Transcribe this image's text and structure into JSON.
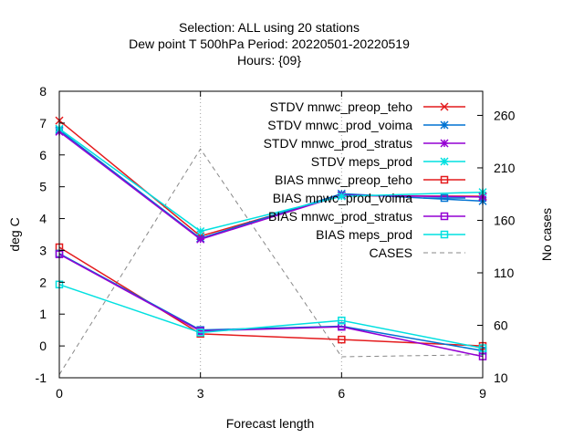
{
  "chart_data": {
    "type": "line",
    "title_lines": [
      "Selection: ALL using    20 stations",
      "Dew point T 500hPa   Period: 20220501-20220519",
      "Hours: {09}"
    ],
    "xlabel": "Forecast length",
    "ylabel": "deg C",
    "y2label": "No cases",
    "x": [
      0,
      3,
      6,
      9
    ],
    "xlim": [
      0,
      9
    ],
    "ylim": [
      -1,
      8
    ],
    "y2lim": [
      10,
      283
    ],
    "xticks": [
      "0",
      "3",
      "6",
      "9"
    ],
    "yticks": [
      "-1",
      "0",
      "1",
      "2",
      "3",
      "4",
      "5",
      "6",
      "7",
      "8"
    ],
    "y2ticks": [
      "10",
      "60",
      "110",
      "160",
      "210",
      "260"
    ],
    "grid": true,
    "legend_position": "top-right",
    "series": [
      {
        "name": "STDV mnwc_preop_teho",
        "values": [
          7.08,
          3.45,
          4.72,
          4.7
        ],
        "color": "#e41a1c",
        "marker": "x",
        "axis": "y"
      },
      {
        "name": "STDV mnwc_prod_voima",
        "values": [
          6.78,
          3.38,
          4.78,
          4.55
        ],
        "color": "#0072d2",
        "marker": "star",
        "axis": "y"
      },
      {
        "name": "STDV mnwc_prod_stratus",
        "values": [
          6.73,
          3.35,
          4.73,
          4.68
        ],
        "color": "#9400d3",
        "marker": "star",
        "axis": "y"
      },
      {
        "name": "STDV meps_prod",
        "values": [
          6.82,
          3.6,
          4.7,
          4.83
        ],
        "color": "#00e0e0",
        "marker": "star",
        "axis": "y"
      },
      {
        "name": "BIAS mnwc_preop_teho",
        "values": [
          3.1,
          0.38,
          0.2,
          0.0
        ],
        "color": "#e41a1c",
        "marker": "square",
        "axis": "y"
      },
      {
        "name": "BIAS mnwc_prod_voima",
        "values": [
          2.9,
          0.5,
          0.62,
          -0.15
        ],
        "color": "#0072d2",
        "marker": "square",
        "axis": "y"
      },
      {
        "name": "BIAS mnwc_prod_stratus",
        "values": [
          2.88,
          0.47,
          0.6,
          -0.33
        ],
        "color": "#9400d3",
        "marker": "square",
        "axis": "y"
      },
      {
        "name": "BIAS meps_prod",
        "values": [
          1.93,
          0.42,
          0.8,
          -0.07
        ],
        "color": "#00e0e0",
        "marker": "square",
        "axis": "y"
      },
      {
        "name": "CASES",
        "values": [
          13,
          228,
          30,
          32
        ],
        "color": "#888888",
        "marker": "none",
        "dashed": true,
        "axis": "y2"
      }
    ]
  }
}
